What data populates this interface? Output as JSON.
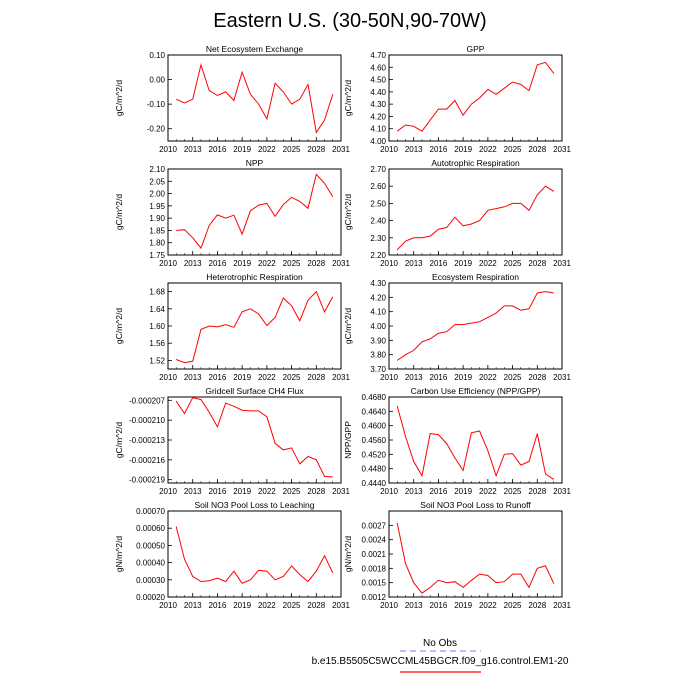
{
  "title": "Eastern U.S. (30-50N,90-70W)",
  "legend": {
    "entries": [
      {
        "label": "No Obs",
        "color": "#9999ff",
        "dashed": true
      },
      {
        "label": "b.e15.B5505C5WCCML45BGCR.f09_g16.control.EM1-20",
        "color": "#ff0000",
        "dashed": false
      }
    ]
  },
  "xticks": [
    "2010",
    "2013",
    "2016",
    "2019",
    "2022",
    "2025",
    "2028",
    "2031"
  ],
  "line_color": "#ff0000",
  "chart_data": [
    {
      "type": "line",
      "title": "Net Ecosystem Exchange",
      "ylabel": "gC/m^2/d",
      "xlim": [
        2010,
        2031
      ],
      "ylim": [
        -0.25,
        0.1
      ],
      "yticks": [
        "0.10",
        "0.00",
        "-0.10",
        "-0.20"
      ],
      "ytick_values": [
        0.1,
        0.0,
        -0.1,
        -0.2
      ],
      "x": [
        2011,
        2012,
        2013,
        2014,
        2015,
        2016,
        2017,
        2018,
        2019,
        2020,
        2021,
        2022,
        2023,
        2024,
        2025,
        2026,
        2027,
        2028,
        2029,
        2030
      ],
      "values": [
        -0.08,
        -0.095,
        -0.08,
        0.06,
        -0.045,
        -0.065,
        -0.05,
        -0.085,
        0.03,
        -0.06,
        -0.1,
        -0.16,
        -0.015,
        -0.05,
        -0.1,
        -0.08,
        -0.02,
        -0.215,
        -0.165,
        -0.06
      ]
    },
    {
      "type": "line",
      "title": "GPP",
      "ylabel": "gC/m^2/d",
      "xlim": [
        2010,
        2031
      ],
      "ylim": [
        4.0,
        4.7
      ],
      "yticks": [
        "4.70",
        "4.60",
        "4.50",
        "4.40",
        "4.30",
        "4.20",
        "4.10",
        "4.00"
      ],
      "ytick_values": [
        4.7,
        4.6,
        4.5,
        4.4,
        4.3,
        4.2,
        4.1,
        4.0
      ],
      "x": [
        2011,
        2012,
        2013,
        2014,
        2015,
        2016,
        2017,
        2018,
        2019,
        2020,
        2021,
        2022,
        2023,
        2024,
        2025,
        2026,
        2027,
        2028,
        2029,
        2030
      ],
      "values": [
        4.08,
        4.13,
        4.12,
        4.08,
        4.17,
        4.26,
        4.26,
        4.33,
        4.21,
        4.3,
        4.35,
        4.42,
        4.38,
        4.43,
        4.48,
        4.46,
        4.41,
        4.62,
        4.64,
        4.55
      ]
    },
    {
      "type": "line",
      "title": "NPP",
      "ylabel": "gC/m^2/d",
      "xlim": [
        2010,
        2031
      ],
      "ylim": [
        1.75,
        2.1
      ],
      "yticks": [
        "2.10",
        "2.05",
        "2.00",
        "1.95",
        "1.90",
        "1.85",
        "1.80",
        "1.75"
      ],
      "ytick_values": [
        2.1,
        2.05,
        2.0,
        1.95,
        1.9,
        1.85,
        1.8,
        1.75
      ],
      "x": [
        2011,
        2012,
        2013,
        2014,
        2015,
        2016,
        2017,
        2018,
        2019,
        2020,
        2021,
        2022,
        2023,
        2024,
        2025,
        2026,
        2027,
        2028,
        2029,
        2030
      ],
      "values": [
        1.85,
        1.853,
        1.82,
        1.778,
        1.87,
        1.913,
        1.9,
        1.912,
        1.835,
        1.93,
        1.953,
        1.96,
        1.907,
        1.955,
        1.985,
        1.968,
        1.94,
        2.078,
        2.042,
        1.987
      ]
    },
    {
      "type": "line",
      "title": "Autotrophic Respiration",
      "ylabel": "gC/m^2/d",
      "xlim": [
        2010,
        2031
      ],
      "ylim": [
        2.2,
        2.7
      ],
      "yticks": [
        "2.70",
        "2.60",
        "2.50",
        "2.40",
        "2.30",
        "2.20"
      ],
      "ytick_values": [
        2.7,
        2.6,
        2.5,
        2.4,
        2.3,
        2.2
      ],
      "x": [
        2011,
        2012,
        2013,
        2014,
        2015,
        2016,
        2017,
        2018,
        2019,
        2020,
        2021,
        2022,
        2023,
        2024,
        2025,
        2026,
        2027,
        2028,
        2029,
        2030
      ],
      "values": [
        2.23,
        2.28,
        2.3,
        2.3,
        2.31,
        2.35,
        2.36,
        2.42,
        2.37,
        2.38,
        2.4,
        2.46,
        2.47,
        2.48,
        2.5,
        2.5,
        2.46,
        2.55,
        2.6,
        2.57
      ]
    },
    {
      "type": "line",
      "title": "Heterotrophic Respiration",
      "ylabel": "gC/m^2/d",
      "xlim": [
        2010,
        2031
      ],
      "ylim": [
        1.5,
        1.7
      ],
      "yticks": [
        "1.68",
        "1.64",
        "1.60",
        "1.56",
        "1.52"
      ],
      "ytick_values": [
        1.68,
        1.64,
        1.6,
        1.56,
        1.52
      ],
      "x": [
        2011,
        2012,
        2013,
        2014,
        2015,
        2016,
        2017,
        2018,
        2019,
        2020,
        2021,
        2022,
        2023,
        2024,
        2025,
        2026,
        2027,
        2028,
        2029,
        2030
      ],
      "values": [
        1.522,
        1.515,
        1.518,
        1.592,
        1.6,
        1.598,
        1.603,
        1.597,
        1.633,
        1.64,
        1.628,
        1.601,
        1.62,
        1.665,
        1.647,
        1.612,
        1.66,
        1.68,
        1.633,
        1.668
      ]
    },
    {
      "type": "line",
      "title": "Ecosystem Respiration",
      "ylabel": "gC/m^2/d",
      "xlim": [
        2010,
        2031
      ],
      "ylim": [
        3.7,
        4.3
      ],
      "yticks": [
        "4.30",
        "4.20",
        "4.10",
        "4.00",
        "3.90",
        "3.80",
        "3.70"
      ],
      "ytick_values": [
        4.3,
        4.2,
        4.1,
        4.0,
        3.9,
        3.8,
        3.7
      ],
      "x": [
        2011,
        2012,
        2013,
        2014,
        2015,
        2016,
        2017,
        2018,
        2019,
        2020,
        2021,
        2022,
        2023,
        2024,
        2025,
        2026,
        2027,
        2028,
        2029,
        2030
      ],
      "values": [
        3.76,
        3.8,
        3.83,
        3.89,
        3.91,
        3.95,
        3.96,
        4.01,
        4.01,
        4.02,
        4.03,
        4.06,
        4.09,
        4.14,
        4.14,
        4.11,
        4.12,
        4.23,
        4.24,
        4.23
      ]
    },
    {
      "type": "line",
      "title": "Gridcell Surface CH4 Flux",
      "ylabel": "gC/m^2/d",
      "xlim": [
        2010,
        2031
      ],
      "ylim": [
        -0.0002195,
        -0.0002065
      ],
      "yticks": [
        "-0.000207",
        "-0.000210",
        "-0.000213",
        "-0.000216",
        "-0.000219"
      ],
      "ytick_values": [
        -0.000207,
        -0.00021,
        -0.000213,
        -0.000216,
        -0.000219
      ],
      "x": [
        2011,
        2012,
        2013,
        2014,
        2015,
        2016,
        2017,
        2018,
        2019,
        2020,
        2021,
        2022,
        2023,
        2024,
        2025,
        2026,
        2027,
        2028,
        2029,
        2030
      ],
      "values": [
        -0.0002071,
        -0.000209,
        -0.0002066,
        -0.0002069,
        -0.0002088,
        -0.000211,
        -0.0002074,
        -0.0002079,
        -0.0002085,
        -0.0002086,
        -0.0002086,
        -0.0002095,
        -0.0002135,
        -0.0002145,
        -0.0002142,
        -0.0002166,
        -0.0002155,
        -0.000216,
        -0.0002185,
        -0.0002186
      ]
    },
    {
      "type": "line",
      "title": "Carbon Use Efficiency (NPP/GPP)",
      "ylabel": "NPP/GPP",
      "xlim": [
        2010,
        2031
      ],
      "ylim": [
        0.444,
        0.468
      ],
      "yticks": [
        "0.4680",
        "0.4640",
        "0.4600",
        "0.4560",
        "0.4520",
        "0.4480",
        "0.4440"
      ],
      "ytick_values": [
        0.468,
        0.464,
        0.46,
        0.456,
        0.452,
        0.448,
        0.444
      ],
      "x": [
        2011,
        2012,
        2013,
        2014,
        2015,
        2016,
        2017,
        2018,
        2019,
        2020,
        2021,
        2022,
        2023,
        2024,
        2025,
        2026,
        2027,
        2028,
        2029,
        2030
      ],
      "values": [
        0.4655,
        0.457,
        0.45,
        0.446,
        0.4578,
        0.4575,
        0.455,
        0.451,
        0.4475,
        0.458,
        0.4585,
        0.453,
        0.446,
        0.452,
        0.4522,
        0.449,
        0.45,
        0.4578,
        0.4465,
        0.445
      ]
    },
    {
      "type": "line",
      "title": "Soil NO3 Pool Loss to Leaching",
      "ylabel": "gN/m^2/d",
      "xlim": [
        2010,
        2031
      ],
      "ylim": [
        0.0002,
        0.0007
      ],
      "yticks": [
        "0.00070",
        "0.00060",
        "0.00050",
        "0.00040",
        "0.00030",
        "0.00020"
      ],
      "ytick_values": [
        0.0007,
        0.0006,
        0.0005,
        0.0004,
        0.0003,
        0.0002
      ],
      "x": [
        2011,
        2012,
        2013,
        2014,
        2015,
        2016,
        2017,
        2018,
        2019,
        2020,
        2021,
        2022,
        2023,
        2024,
        2025,
        2026,
        2027,
        2028,
        2029,
        2030
      ],
      "values": [
        0.00061,
        0.00042,
        0.00032,
        0.00029,
        0.000295,
        0.00031,
        0.00029,
        0.00035,
        0.00028,
        0.0003,
        0.000355,
        0.00035,
        0.0003,
        0.00032,
        0.00038,
        0.00033,
        0.00029,
        0.00035,
        0.00044,
        0.00034
      ]
    },
    {
      "type": "line",
      "title": "Soil NO3 Pool Loss to Runoff",
      "ylabel": "gN/m^2/d",
      "xlim": [
        2010,
        2031
      ],
      "ylim": [
        0.0012,
        0.003
      ],
      "yticks": [
        "0.0027",
        "0.0024",
        "0.0021",
        "0.0018",
        "0.0015",
        "0.0012"
      ],
      "ytick_values": [
        0.0027,
        0.0024,
        0.0021,
        0.0018,
        0.0015,
        0.0012
      ],
      "x": [
        2011,
        2012,
        2013,
        2014,
        2015,
        2016,
        2017,
        2018,
        2019,
        2020,
        2021,
        2022,
        2023,
        2024,
        2025,
        2026,
        2027,
        2028,
        2029,
        2030
      ],
      "values": [
        0.00275,
        0.0019,
        0.0015,
        0.00128,
        0.0014,
        0.00155,
        0.0015,
        0.00152,
        0.0014,
        0.00155,
        0.00168,
        0.00165,
        0.0015,
        0.00152,
        0.00168,
        0.00168,
        0.0014,
        0.0018,
        0.00185,
        0.00148
      ]
    }
  ]
}
